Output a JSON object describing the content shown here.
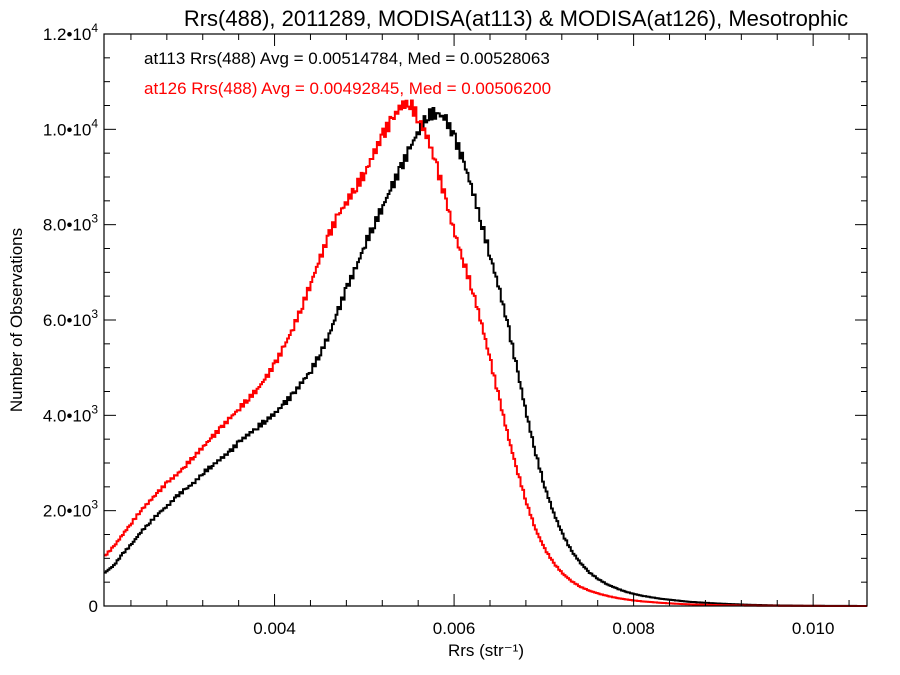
{
  "chart_data": {
    "type": "line",
    "title": "Rrs(488), 2011289, MODISA(at113) & MODISA(at126), Mesotrophic",
    "xlabel": "Rrs (str⁻¹)",
    "ylabel": "Number of Observations",
    "xlim": [
      0.0021,
      0.0106
    ],
    "ylim": [
      0,
      12000
    ],
    "x_ticks": [
      {
        "value": 0.004,
        "label": "0.004"
      },
      {
        "value": 0.006,
        "label": "0.006"
      },
      {
        "value": 0.008,
        "label": "0.008"
      },
      {
        "value": 0.01,
        "label": "0.010"
      }
    ],
    "y_ticks": [
      {
        "value": 0,
        "label": "0",
        "exp": ""
      },
      {
        "value": 2000,
        "label": "2.0•10",
        "exp": "3"
      },
      {
        "value": 4000,
        "label": "4.0•10",
        "exp": "3"
      },
      {
        "value": 6000,
        "label": "6.0•10",
        "exp": "3"
      },
      {
        "value": 8000,
        "label": "8.0•10",
        "exp": "3"
      },
      {
        "value": 10000,
        "label": "1.0•10",
        "exp": "4"
      },
      {
        "value": 12000,
        "label": "1.2•10",
        "exp": "4"
      }
    ],
    "annotations": [
      {
        "text": "at113 Rrs(488) Avg = 0.00514784, Med = 0.00528063",
        "color": "#000000"
      },
      {
        "text": "at126 Rrs(488) Avg = 0.00492845, Med = 0.00506200",
        "color": "#ff0000"
      }
    ],
    "bin_width": 4e-05,
    "series": [
      {
        "color": "#000000",
        "points": [
          [
            0.0021,
            700
          ],
          [
            0.0022,
            850
          ],
          [
            0.0023,
            1100
          ],
          [
            0.0024,
            1300
          ],
          [
            0.0025,
            1550
          ],
          [
            0.0026,
            1750
          ],
          [
            0.0027,
            1950
          ],
          [
            0.0028,
            2100
          ],
          [
            0.0029,
            2300
          ],
          [
            0.003,
            2450
          ],
          [
            0.0031,
            2600
          ],
          [
            0.0032,
            2800
          ],
          [
            0.0033,
            2950
          ],
          [
            0.0034,
            3100
          ],
          [
            0.0035,
            3250
          ],
          [
            0.0036,
            3450
          ],
          [
            0.0037,
            3600
          ],
          [
            0.0038,
            3750
          ],
          [
            0.0039,
            3900
          ],
          [
            0.004,
            4050
          ],
          [
            0.0041,
            4250
          ],
          [
            0.0042,
            4450
          ],
          [
            0.0043,
            4700
          ],
          [
            0.0044,
            4950
          ],
          [
            0.0045,
            5300
          ],
          [
            0.0046,
            5700
          ],
          [
            0.0047,
            6200
          ],
          [
            0.0048,
            6700
          ],
          [
            0.0049,
            7100
          ],
          [
            0.005,
            7600
          ],
          [
            0.0051,
            8000
          ],
          [
            0.0052,
            8400
          ],
          [
            0.0053,
            8800
          ],
          [
            0.0054,
            9200
          ],
          [
            0.0055,
            9600
          ],
          [
            0.0056,
            10000
          ],
          [
            0.0057,
            10300
          ],
          [
            0.0058,
            10350
          ],
          [
            0.0059,
            10200
          ],
          [
            0.006,
            9800
          ],
          [
            0.0061,
            9300
          ],
          [
            0.0062,
            8700
          ],
          [
            0.0063,
            8000
          ],
          [
            0.0064,
            7300
          ],
          [
            0.0065,
            6600
          ],
          [
            0.0066,
            5800
          ],
          [
            0.0067,
            4900
          ],
          [
            0.0068,
            4000
          ],
          [
            0.0069,
            3200
          ],
          [
            0.007,
            2500
          ],
          [
            0.0071,
            1950
          ],
          [
            0.0072,
            1500
          ],
          [
            0.0073,
            1150
          ],
          [
            0.0074,
            900
          ],
          [
            0.0075,
            700
          ],
          [
            0.0076,
            560
          ],
          [
            0.0077,
            450
          ],
          [
            0.0078,
            370
          ],
          [
            0.0079,
            300
          ],
          [
            0.008,
            250
          ],
          [
            0.0081,
            210
          ],
          [
            0.0082,
            180
          ],
          [
            0.0083,
            150
          ],
          [
            0.0084,
            130
          ],
          [
            0.0085,
            110
          ],
          [
            0.0086,
            90
          ],
          [
            0.0087,
            78
          ],
          [
            0.0088,
            66
          ],
          [
            0.0089,
            55
          ],
          [
            0.009,
            46
          ],
          [
            0.0091,
            38
          ],
          [
            0.0092,
            31
          ],
          [
            0.0093,
            25
          ],
          [
            0.0094,
            20
          ],
          [
            0.0095,
            16
          ],
          [
            0.0096,
            12
          ],
          [
            0.0097,
            10
          ],
          [
            0.0098,
            8
          ],
          [
            0.0099,
            6
          ],
          [
            0.01,
            5
          ],
          [
            0.0101,
            4
          ],
          [
            0.0102,
            3
          ],
          [
            0.0103,
            2
          ],
          [
            0.0104,
            2
          ],
          [
            0.0105,
            1
          ],
          [
            0.0106,
            1
          ]
        ]
      },
      {
        "color": "#ff0000",
        "points": [
          [
            0.0021,
            1050
          ],
          [
            0.0022,
            1250
          ],
          [
            0.0023,
            1500
          ],
          [
            0.0024,
            1750
          ],
          [
            0.0025,
            2000
          ],
          [
            0.0026,
            2200
          ],
          [
            0.0027,
            2400
          ],
          [
            0.0028,
            2600
          ],
          [
            0.0029,
            2750
          ],
          [
            0.003,
            2950
          ],
          [
            0.0031,
            3150
          ],
          [
            0.0032,
            3350
          ],
          [
            0.0033,
            3550
          ],
          [
            0.0034,
            3750
          ],
          [
            0.0035,
            3950
          ],
          [
            0.0036,
            4150
          ],
          [
            0.0037,
            4350
          ],
          [
            0.0038,
            4550
          ],
          [
            0.0039,
            4800
          ],
          [
            0.004,
            5100
          ],
          [
            0.0041,
            5450
          ],
          [
            0.0042,
            5850
          ],
          [
            0.0043,
            6300
          ],
          [
            0.0044,
            6800
          ],
          [
            0.0045,
            7300
          ],
          [
            0.0046,
            7800
          ],
          [
            0.0047,
            8200
          ],
          [
            0.0048,
            8500
          ],
          [
            0.0049,
            8800
          ],
          [
            0.005,
            9100
          ],
          [
            0.0051,
            9500
          ],
          [
            0.0052,
            9900
          ],
          [
            0.0053,
            10200
          ],
          [
            0.0054,
            10500
          ],
          [
            0.0055,
            10550
          ],
          [
            0.0056,
            10200
          ],
          [
            0.0057,
            9800
          ],
          [
            0.0058,
            9200
          ],
          [
            0.0059,
            8500
          ],
          [
            0.006,
            7800
          ],
          [
            0.0061,
            7200
          ],
          [
            0.0062,
            6600
          ],
          [
            0.0063,
            5900
          ],
          [
            0.0064,
            5100
          ],
          [
            0.0065,
            4300
          ],
          [
            0.0066,
            3500
          ],
          [
            0.0067,
            2800
          ],
          [
            0.0068,
            2150
          ],
          [
            0.0069,
            1600
          ],
          [
            0.007,
            1200
          ],
          [
            0.0071,
            900
          ],
          [
            0.0072,
            680
          ],
          [
            0.0073,
            520
          ],
          [
            0.0074,
            400
          ],
          [
            0.0075,
            320
          ],
          [
            0.0076,
            260
          ],
          [
            0.0077,
            210
          ],
          [
            0.0078,
            170
          ],
          [
            0.0079,
            140
          ],
          [
            0.008,
            115
          ],
          [
            0.0081,
            95
          ],
          [
            0.0082,
            80
          ],
          [
            0.0083,
            66
          ],
          [
            0.0084,
            54
          ],
          [
            0.0085,
            44
          ],
          [
            0.0086,
            36
          ],
          [
            0.0087,
            30
          ],
          [
            0.0088,
            25
          ],
          [
            0.0089,
            20
          ],
          [
            0.009,
            16
          ],
          [
            0.0091,
            13
          ],
          [
            0.0092,
            10
          ],
          [
            0.0093,
            8
          ],
          [
            0.0094,
            6
          ],
          [
            0.0095,
            5
          ],
          [
            0.0096,
            4
          ],
          [
            0.0097,
            3
          ],
          [
            0.0098,
            3
          ],
          [
            0.0099,
            2
          ],
          [
            0.01,
            2
          ],
          [
            0.0101,
            1
          ],
          [
            0.0102,
            1
          ],
          [
            0.0103,
            1
          ],
          [
            0.0104,
            0
          ],
          [
            0.0105,
            0
          ],
          [
            0.0106,
            0
          ]
        ]
      }
    ]
  }
}
